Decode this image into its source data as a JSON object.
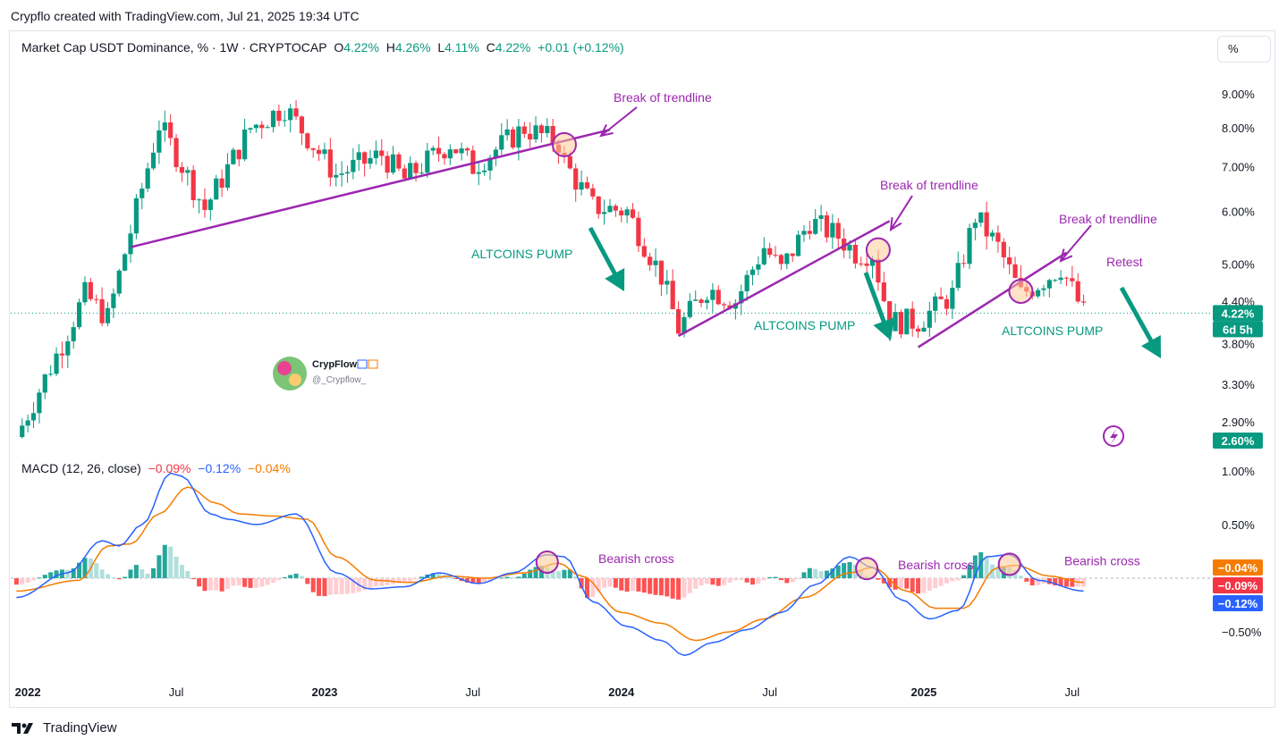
{
  "header": {
    "attribution": "Crypflo created with TradingView.com, Jul 21, 2025 19:34 UTC"
  },
  "legend": {
    "symbol": "Market Cap USDT Dominance, % · 1W · CRYPTOCAP",
    "o_label": "O",
    "o": "4.22%",
    "h_label": "H",
    "h": "4.26%",
    "l_label": "L",
    "l": "4.11%",
    "c_label": "C",
    "c": "4.22%",
    "change": "+0.01 (+0.12%)"
  },
  "macd_legend": {
    "title": "MACD (12, 26, close)",
    "hist": "−0.09%",
    "macd": "−0.12%",
    "signal": "−0.04%"
  },
  "scale_button": "%",
  "footer": {
    "brand": "TradingView"
  },
  "watermark": {
    "name": "CrypFlow",
    "handle": "@_Crypflow_"
  },
  "colors": {
    "up": "#089981",
    "down": "#f23645",
    "trendline": "#9c27b0",
    "arrow": "#089981",
    "macd": "#2962ff",
    "signal": "#f57c00",
    "hist_up": "#26a69a",
    "hist_up_light": "#b2dfdb",
    "hist_down": "#ff5252",
    "hist_down_light": "#ffcdd2",
    "circle_fill": "#ffcc99"
  },
  "chart_data": [
    {
      "type": "candlestick",
      "title": "Market Cap USDT Dominance, % · 1W · CRYPTOCAP",
      "scale": "log",
      "y_ticks": [
        "9.00%",
        "8.00%",
        "7.00%",
        "6.00%",
        "5.00%",
        "4.40%",
        "3.80%",
        "3.30%",
        "2.90%"
      ],
      "x_ticks": [
        {
          "label": "2022",
          "bold": true
        },
        {
          "label": "Jul",
          "bold": false
        },
        {
          "label": "2023",
          "bold": true
        },
        {
          "label": "Jul",
          "bold": false
        },
        {
          "label": "2024",
          "bold": true
        },
        {
          "label": "Jul",
          "bold": false
        },
        {
          "label": "2025",
          "bold": true
        },
        {
          "label": "Jul",
          "bold": false
        }
      ],
      "last_price_tag": "4.22%",
      "countdown_tag": "6d 5h",
      "low_tag": "2.60%",
      "keypoints": [
        {
          "date": "2021-12-20",
          "value": 2.75
        },
        {
          "date": "2022-02-14",
          "value": 3.8
        },
        {
          "date": "2022-03-14",
          "value": 4.5
        },
        {
          "date": "2022-04-11",
          "value": 4.15
        },
        {
          "date": "2022-05-09",
          "value": 5.6
        },
        {
          "date": "2022-06-13",
          "value": 8.1
        },
        {
          "date": "2022-07-04",
          "value": 7.3
        },
        {
          "date": "2022-08-08",
          "value": 6.05
        },
        {
          "date": "2022-10-03",
          "value": 8.0
        },
        {
          "date": "2022-11-14",
          "value": 8.6
        },
        {
          "date": "2023-01-16",
          "value": 6.8
        },
        {
          "date": "2023-03-13",
          "value": 7.3
        },
        {
          "date": "2023-04-10",
          "value": 6.7
        },
        {
          "date": "2023-06-05",
          "value": 7.6
        },
        {
          "date": "2023-07-03",
          "value": 7.0
        },
        {
          "date": "2023-09-04",
          "value": 8.0
        },
        {
          "date": "2023-10-16",
          "value": 7.6
        },
        {
          "date": "2023-10-23",
          "value": 7.1
        },
        {
          "date": "2023-11-27",
          "value": 6.1
        },
        {
          "date": "2024-01-08",
          "value": 6.0
        },
        {
          "date": "2024-02-19",
          "value": 4.8
        },
        {
          "date": "2024-03-11",
          "value": 4.0
        },
        {
          "date": "2024-04-15",
          "value": 4.6
        },
        {
          "date": "2024-05-20",
          "value": 4.4
        },
        {
          "date": "2024-06-24",
          "value": 5.3
        },
        {
          "date": "2024-07-15",
          "value": 4.9
        },
        {
          "date": "2024-08-19",
          "value": 5.8
        },
        {
          "date": "2024-09-23",
          "value": 5.5
        },
        {
          "date": "2024-10-14",
          "value": 5.2
        },
        {
          "date": "2024-11-04",
          "value": 5.2
        },
        {
          "date": "2024-11-25",
          "value": 4.1
        },
        {
          "date": "2024-12-30",
          "value": 4.1
        },
        {
          "date": "2025-02-10",
          "value": 4.5
        },
        {
          "date": "2025-03-10",
          "value": 5.9
        },
        {
          "date": "2025-04-07",
          "value": 5.3
        },
        {
          "date": "2025-05-05",
          "value": 4.5
        },
        {
          "date": "2025-06-09",
          "value": 4.8
        },
        {
          "date": "2025-06-23",
          "value": 4.95
        },
        {
          "date": "2025-07-21",
          "value": 4.22
        }
      ],
      "trendlines": [
        {
          "from": {
            "date": "2022-05-09",
            "value": 5.3
          },
          "to": {
            "date": "2023-12-18",
            "value": 7.95
          }
        },
        {
          "from": {
            "date": "2024-03-11",
            "value": 3.9
          },
          "to": {
            "date": "2024-11-25",
            "value": 5.8
          }
        },
        {
          "from": {
            "date": "2024-12-30",
            "value": 3.75
          },
          "to": {
            "date": "2025-06-30",
            "value": 5.2
          }
        }
      ],
      "annotations": [
        {
          "text": "Break of trendline",
          "color": "#9c27b0"
        },
        {
          "text": "Break of trendline",
          "color": "#9c27b0"
        },
        {
          "text": "Break of trendline",
          "color": "#9c27b0"
        },
        {
          "text": "Retest",
          "color": "#9c27b0"
        },
        {
          "text": "ALTCOINS PUMP",
          "color": "#089981"
        },
        {
          "text": "ALTCOINS PUMP",
          "color": "#089981"
        },
        {
          "text": "ALTCOINS PUMP",
          "color": "#089981"
        }
      ]
    },
    {
      "type": "line",
      "title": "MACD (12, 26, close)",
      "y_ticks": [
        "1.00%",
        "0.50%",
        "−0.50%"
      ],
      "value_tags": [
        {
          "text": "−0.04%",
          "color": "#f57c00"
        },
        {
          "text": "−0.09%",
          "color": "#f23645"
        },
        {
          "text": "−0.12%",
          "color": "#2962ff"
        }
      ],
      "annotations": [
        "Bearish cross",
        "Bearish cross",
        "Bearish cross"
      ],
      "series": [
        {
          "name": "MACD",
          "points": [
            {
              "date": "2021-12-20",
              "value": -0.18
            },
            {
              "date": "2022-02-21",
              "value": 0.05
            },
            {
              "date": "2022-04-04",
              "value": 0.35
            },
            {
              "date": "2022-04-25",
              "value": 0.3
            },
            {
              "date": "2022-05-23",
              "value": 0.5
            },
            {
              "date": "2022-06-27",
              "value": 0.98
            },
            {
              "date": "2022-07-11",
              "value": 0.95
            },
            {
              "date": "2022-08-15",
              "value": 0.6
            },
            {
              "date": "2022-09-05",
              "value": 0.55
            },
            {
              "date": "2022-10-10",
              "value": 0.5
            },
            {
              "date": "2022-11-28",
              "value": 0.6
            },
            {
              "date": "2023-01-16",
              "value": 0.05
            },
            {
              "date": "2023-02-27",
              "value": -0.1
            },
            {
              "date": "2023-04-10",
              "value": -0.08
            },
            {
              "date": "2023-05-22",
              "value": 0.05
            },
            {
              "date": "2023-07-10",
              "value": -0.05
            },
            {
              "date": "2023-08-21",
              "value": 0.05
            },
            {
              "date": "2023-10-02",
              "value": 0.22
            },
            {
              "date": "2023-10-23",
              "value": 0.2
            },
            {
              "date": "2023-11-27",
              "value": -0.22
            },
            {
              "date": "2024-01-08",
              "value": -0.45
            },
            {
              "date": "2024-02-19",
              "value": -0.58
            },
            {
              "date": "2024-03-18",
              "value": -0.72
            },
            {
              "date": "2024-04-22",
              "value": -0.6
            },
            {
              "date": "2024-06-03",
              "value": -0.48
            },
            {
              "date": "2024-07-15",
              "value": -0.32
            },
            {
              "date": "2024-08-26",
              "value": -0.06
            },
            {
              "date": "2024-10-07",
              "value": 0.2
            },
            {
              "date": "2024-11-04",
              "value": 0.1
            },
            {
              "date": "2024-12-09",
              "value": -0.2
            },
            {
              "date": "2025-01-13",
              "value": -0.38
            },
            {
              "date": "2025-02-17",
              "value": -0.3
            },
            {
              "date": "2025-03-24",
              "value": 0.2
            },
            {
              "date": "2025-04-21",
              "value": 0.22
            },
            {
              "date": "2025-05-26",
              "value": -0.02
            },
            {
              "date": "2025-07-21",
              "value": -0.12
            }
          ]
        },
        {
          "name": "Signal",
          "points": [
            {
              "date": "2021-12-20",
              "value": -0.12
            },
            {
              "date": "2022-03-07",
              "value": -0.02
            },
            {
              "date": "2022-04-11",
              "value": 0.3
            },
            {
              "date": "2022-05-09",
              "value": 0.32
            },
            {
              "date": "2022-06-13",
              "value": 0.6
            },
            {
              "date": "2022-07-18",
              "value": 0.85
            },
            {
              "date": "2022-08-22",
              "value": 0.7
            },
            {
              "date": "2022-09-19",
              "value": 0.6
            },
            {
              "date": "2022-10-31",
              "value": 0.58
            },
            {
              "date": "2022-12-12",
              "value": 0.55
            },
            {
              "date": "2023-01-16",
              "value": 0.2
            },
            {
              "date": "2023-03-06",
              "value": -0.02
            },
            {
              "date": "2023-04-17",
              "value": -0.04
            },
            {
              "date": "2023-06-05",
              "value": 0.02
            },
            {
              "date": "2023-07-17",
              "value": 0.0
            },
            {
              "date": "2023-09-04",
              "value": 0.05
            },
            {
              "date": "2023-10-16",
              "value": 0.14
            },
            {
              "date": "2023-11-13",
              "value": 0.02
            },
            {
              "date": "2024-01-01",
              "value": -0.32
            },
            {
              "date": "2024-02-19",
              "value": -0.42
            },
            {
              "date": "2024-04-01",
              "value": -0.58
            },
            {
              "date": "2024-05-13",
              "value": -0.5
            },
            {
              "date": "2024-06-24",
              "value": -0.38
            },
            {
              "date": "2024-08-12",
              "value": -0.18
            },
            {
              "date": "2024-10-07",
              "value": 0.05
            },
            {
              "date": "2024-11-04",
              "value": 0.1
            },
            {
              "date": "2024-12-16",
              "value": -0.12
            },
            {
              "date": "2025-01-20",
              "value": -0.28
            },
            {
              "date": "2025-02-24",
              "value": -0.28
            },
            {
              "date": "2025-04-07",
              "value": 0.1
            },
            {
              "date": "2025-04-28",
              "value": 0.12
            },
            {
              "date": "2025-06-09",
              "value": 0.02
            },
            {
              "date": "2025-07-21",
              "value": -0.04
            }
          ]
        }
      ]
    }
  ]
}
